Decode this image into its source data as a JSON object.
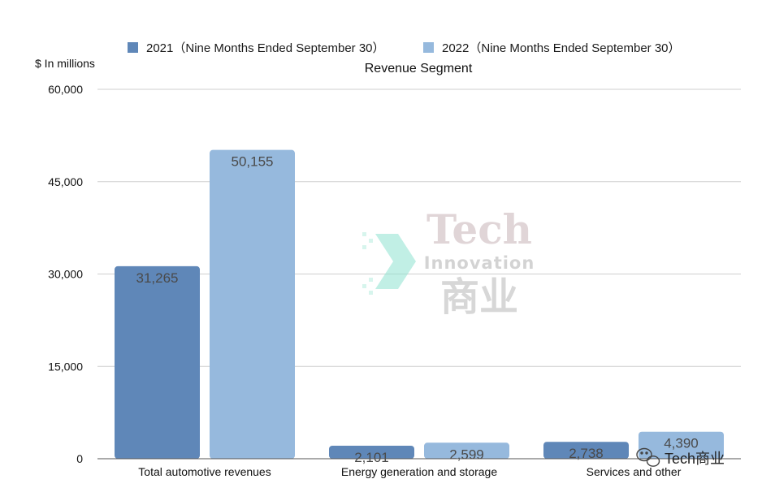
{
  "chart_data": {
    "type": "bar",
    "title": "Revenue Segment",
    "ylabel": "$ In millions",
    "xlabel": "",
    "categories": [
      "Total automotive revenues",
      "Energy generation and storage",
      "Services and other"
    ],
    "series": [
      {
        "name": "2021（Nine Months Ended September 30）",
        "values": [
          31265,
          2101,
          2738
        ],
        "labels": [
          "31,265",
          "2,101",
          "2,738"
        ],
        "color": "#5f87b8"
      },
      {
        "name": "2022（Nine Months Ended September 30）",
        "values": [
          50155,
          2599,
          4390
        ],
        "labels": [
          "50,155",
          "2,599",
          "4,390"
        ],
        "color": "#96b9dd"
      }
    ],
    "ylim": [
      0,
      60000
    ],
    "yticks": [
      0,
      15000,
      30000,
      45000,
      60000
    ],
    "ytick_labels": [
      "0",
      "15,000",
      "30,000",
      "45,000",
      "60,000"
    ],
    "grid": true,
    "legend_position": "top-center"
  },
  "watermark": {
    "line1": "Tech",
    "line2": "Innovation",
    "line3": "商业",
    "badge": "Tech商业",
    "badge_icon": "wechat-icon"
  }
}
